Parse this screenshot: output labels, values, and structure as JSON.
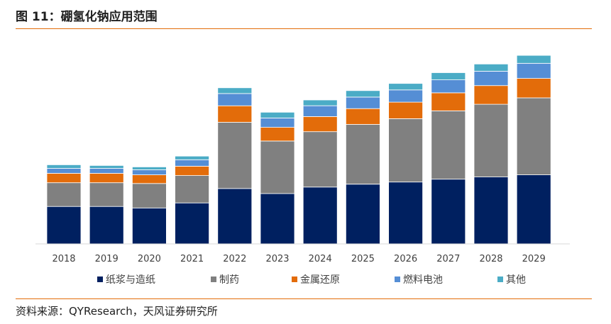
{
  "header": {
    "title": "图 11：硼氢化钠应用范围"
  },
  "footer": {
    "source": "资料来源：QYResearch，天风证券研究所"
  },
  "chart_data": {
    "type": "bar",
    "stacked": true,
    "categories": [
      "2018",
      "2019",
      "2020",
      "2021",
      "2022",
      "2023",
      "2024",
      "2025",
      "2026",
      "2027",
      "2028",
      "2029"
    ],
    "series": [
      {
        "name": "纸浆与造纸",
        "color": "#002060",
        "values": [
          52,
          52,
          50,
          57,
          77,
          70,
          79,
          83,
          86,
          90,
          93,
          96
        ]
      },
      {
        "name": "制药",
        "color": "#808080",
        "values": [
          33,
          33,
          34,
          38,
          92,
          73,
          77,
          83,
          88,
          95,
          101,
          107
        ]
      },
      {
        "name": "金属还原",
        "color": "#e36c0a",
        "values": [
          13,
          13,
          12,
          13,
          23,
          19,
          21,
          22,
          23,
          25,
          26,
          27
        ]
      },
      {
        "name": "燃料电池",
        "color": "#558ed5",
        "values": [
          7,
          7,
          7,
          9,
          17,
          13,
          15,
          16,
          17,
          18,
          20,
          21
        ]
      },
      {
        "name": "其他",
        "color": "#4bacc6",
        "values": [
          5,
          4,
          4,
          5,
          8,
          8,
          8,
          9,
          9,
          10,
          10,
          11
        ]
      }
    ],
    "ylim": [
      0,
      270
    ],
    "grid": false,
    "legend_position": "bottom"
  }
}
